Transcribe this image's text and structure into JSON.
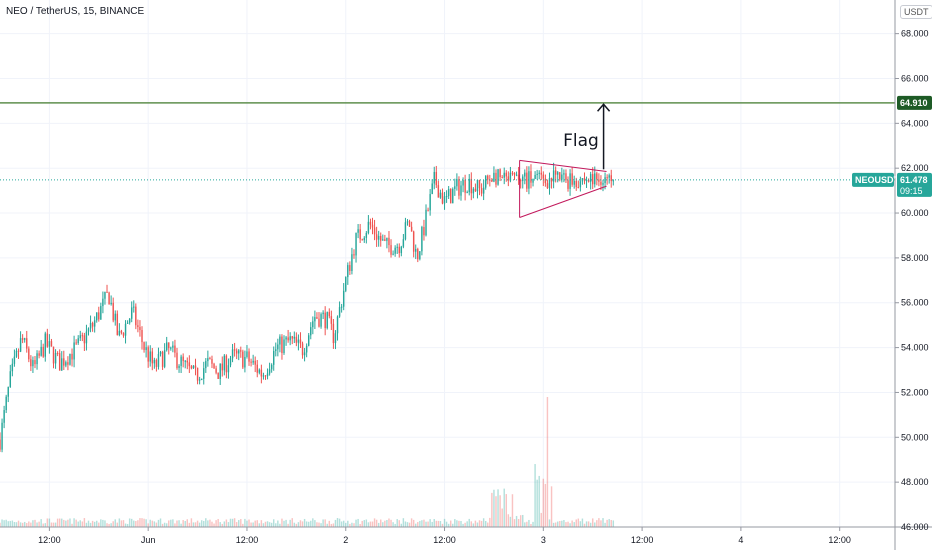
{
  "header": {
    "title": "NEO / TetherUS, 15, BINANCE",
    "unit": "USDT"
  },
  "colors": {
    "up": "#26a69a",
    "down": "#ef5350",
    "level": "#5f8f4e",
    "level_tag": "#1e5b26",
    "price_tag": "#26a69a",
    "flag": "#c2185b",
    "grid": "#f0f3fa",
    "axis": "#9598a1"
  },
  "chart_data": {
    "type": "candlestick",
    "symbol": "NEOUSDT",
    "ylim": [
      46,
      69.5
    ],
    "y_ticks": [
      46,
      48,
      50,
      52,
      54,
      56,
      58,
      60,
      62,
      64,
      66,
      68
    ],
    "y_tick_labels": [
      "46.000",
      "48.000",
      "50.000",
      "52.000",
      "54.000",
      "56.000",
      "58.000",
      "60.000",
      "62.000",
      "64.000",
      "66.000",
      "68.000"
    ],
    "x_ticks": [
      {
        "label": "12:00",
        "t": 0.5
      },
      {
        "label": "Jun",
        "t": 1.0
      },
      {
        "label": "12:00",
        "t": 1.5
      },
      {
        "label": "2",
        "t": 2.0
      },
      {
        "label": "12:00",
        "t": 2.5
      },
      {
        "label": "3",
        "t": 3.0
      },
      {
        "label": "12:00",
        "t": 3.5
      },
      {
        "label": "4",
        "t": 4.0
      },
      {
        "label": "12:00",
        "t": 4.5
      }
    ],
    "x_range_days": [
      0.25,
      4.78
    ],
    "interval_days": 0.0104167,
    "first_candle_t": 0.25,
    "last_candle_t": 3.36,
    "close_anchors": [
      [
        0.25,
        49.9
      ],
      [
        0.3,
        52.5
      ],
      [
        0.36,
        54.4
      ],
      [
        0.42,
        53.0
      ],
      [
        0.48,
        54.2
      ],
      [
        0.55,
        53.3
      ],
      [
        0.64,
        54.0
      ],
      [
        0.72,
        55.0
      ],
      [
        0.8,
        56.4
      ],
      [
        0.85,
        54.4
      ],
      [
        0.92,
        55.6
      ],
      [
        0.98,
        54.0
      ],
      [
        1.03,
        53.1
      ],
      [
        1.1,
        53.9
      ],
      [
        1.18,
        53.2
      ],
      [
        1.24,
        52.7
      ],
      [
        1.3,
        53.3
      ],
      [
        1.36,
        52.9
      ],
      [
        1.42,
        53.6
      ],
      [
        1.5,
        53.5
      ],
      [
        1.58,
        52.8
      ],
      [
        1.65,
        54.0
      ],
      [
        1.72,
        54.3
      ],
      [
        1.78,
        53.9
      ],
      [
        1.84,
        55.4
      ],
      [
        1.9,
        55.3
      ],
      [
        1.94,
        54.5
      ],
      [
        2.0,
        57.0
      ],
      [
        2.05,
        58.8
      ],
      [
        2.12,
        59.5
      ],
      [
        2.2,
        58.5
      ],
      [
        2.27,
        58.6
      ],
      [
        2.32,
        59.6
      ],
      [
        2.36,
        58.0
      ],
      [
        2.4,
        59.5
      ],
      [
        2.45,
        61.5
      ],
      [
        2.5,
        60.5
      ],
      [
        2.56,
        61.1
      ],
      [
        2.62,
        61.4
      ],
      [
        2.68,
        61.0
      ],
      [
        2.74,
        61.7
      ],
      [
        2.8,
        61.4
      ],
      [
        2.86,
        61.5
      ]
    ],
    "last_price": 61.478,
    "last_price_label": "61.478",
    "countdown": "09:15",
    "horizontal_level": {
      "value": 64.91,
      "label": "64.910"
    },
    "flag_pattern": {
      "label": "Flag",
      "upper_line": [
        [
          2.88,
          62.35
        ],
        [
          3.32,
          61.85
        ]
      ],
      "lower_line": [
        [
          2.88,
          59.8
        ],
        [
          3.32,
          61.2
        ]
      ],
      "arrow_t": 3.305,
      "arrow_from": 61.95,
      "arrow_to": 64.85,
      "label_at": [
        3.1,
        63.0
      ]
    },
    "grid": true,
    "volume_pane": true
  }
}
